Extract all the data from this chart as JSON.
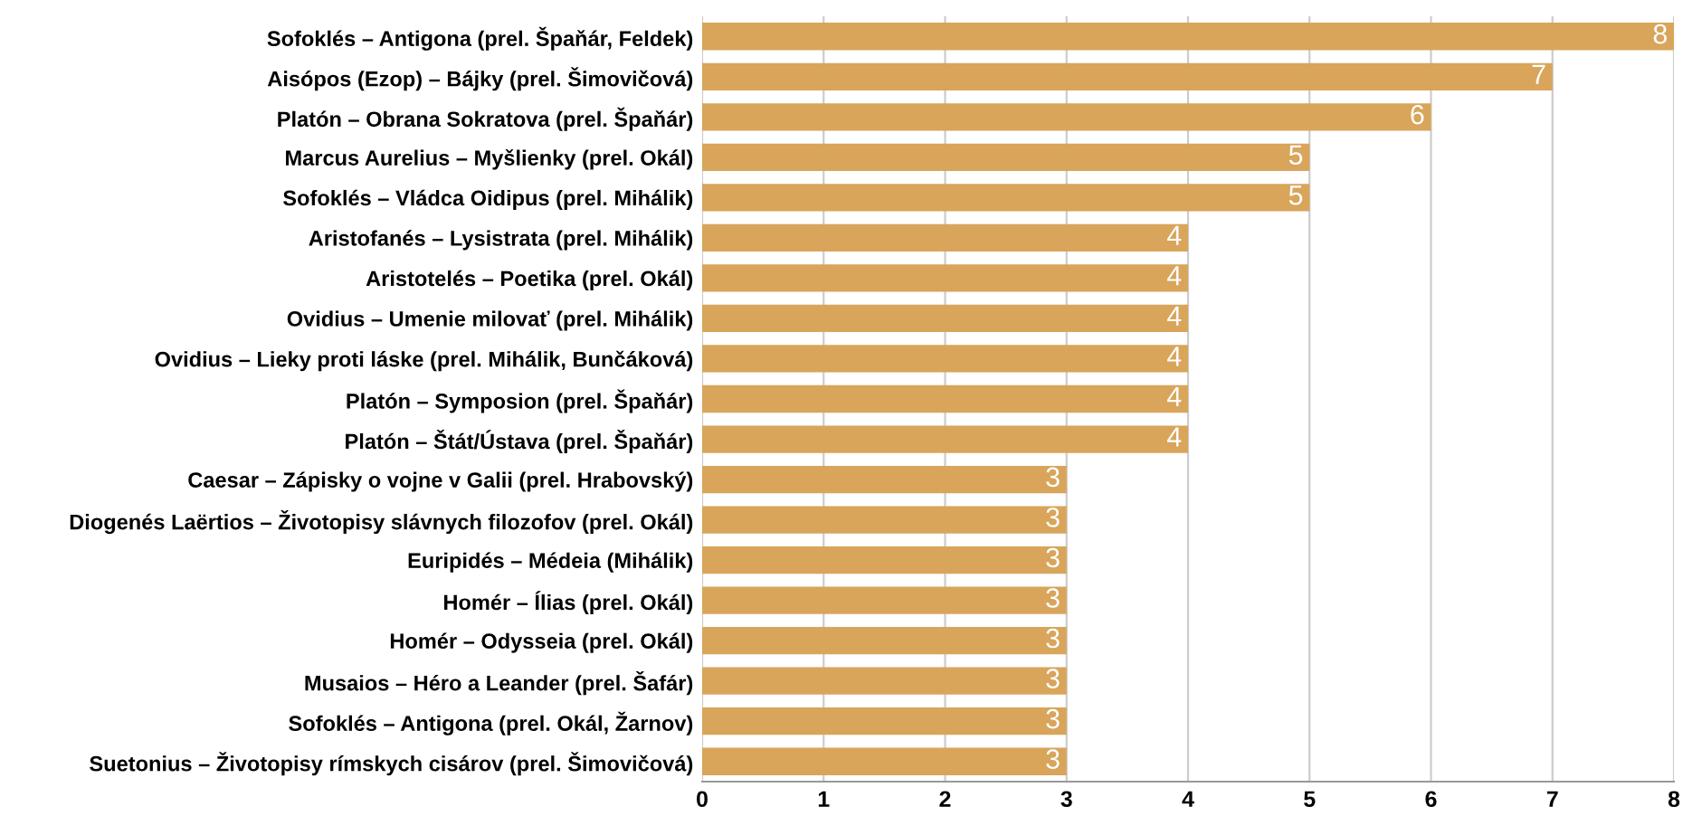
{
  "chart_data": {
    "type": "bar",
    "orientation": "horizontal",
    "categories": [
      "Sofoklés – Antigona (prel. Špaňár, Feldek)",
      "Aisópos (Ezop) – Bájky (prel. Šimovičová)",
      "Platón – Obrana Sokratova (prel. Špaňár)",
      "Marcus Aurelius – Myšlienky (prel. Okál)",
      "Sofoklés – Vládca Oidipus (prel. Mihálik)",
      "Aristofanés – Lysistrata (prel. Mihálik)",
      "Aristotelés – Poetika (prel. Okál)",
      "Ovidius – Umenie milovať (prel. Mihálik)",
      "Ovidius – Lieky proti láske (prel. Mihálik, Bunčáková)",
      "Platón – Symposion (prel. Špaňár)",
      "Platón – Štát/Ústava (prel. Špaňár)",
      "Caesar – Zápisky o vojne v Galii (prel. Hrabovský)",
      "Diogenés Laërtios – Životopisy slávnych filozofov (prel. Okál)",
      "Euripidés – Médeia (Mihálik)",
      "Homér – Ílias (prel. Okál)",
      "Homér – Odysseia (prel. Okál)",
      "Musaios – Héro a Leander (prel. Šafár)",
      "Sofoklés – Antigona (prel. Okál, Žarnov)",
      "Suetonius – Životopisy rímskych cisárov (prel. Šimovičová)"
    ],
    "values": [
      8,
      7,
      6,
      5,
      5,
      4,
      4,
      4,
      4,
      4,
      4,
      3,
      3,
      3,
      3,
      3,
      3,
      3,
      3
    ],
    "color": "#d8a55b",
    "xlim": [
      0,
      8
    ],
    "xticks": [
      0,
      1,
      2,
      3,
      4,
      5,
      6,
      7,
      8
    ],
    "grid": "x",
    "data_labels": true
  }
}
